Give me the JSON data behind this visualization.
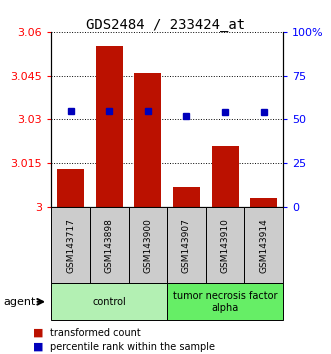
{
  "title": "GDS2484 / 233424_at",
  "samples": [
    "GSM143717",
    "GSM143898",
    "GSM143900",
    "GSM143907",
    "GSM143910",
    "GSM143914"
  ],
  "red_values": [
    3.013,
    3.055,
    3.046,
    3.007,
    3.021,
    3.003
  ],
  "blue_values": [
    55,
    55,
    55,
    52,
    54,
    54
  ],
  "ylim_left": [
    3.0,
    3.06
  ],
  "ylim_right": [
    0,
    100
  ],
  "yticks_left": [
    3.0,
    3.015,
    3.03,
    3.045,
    3.06
  ],
  "ytick_labels_left": [
    "3",
    "3.015",
    "3.03",
    "3.045",
    "3.06"
  ],
  "yticks_right": [
    0,
    25,
    50,
    75,
    100
  ],
  "ytick_labels_right": [
    "0",
    "25",
    "50",
    "75",
    "100%"
  ],
  "groups": [
    {
      "label": "control",
      "indices": [
        0,
        1,
        2
      ],
      "color": "#b3f0b3"
    },
    {
      "label": "tumor necrosis factor\nalpha",
      "indices": [
        3,
        4,
        5
      ],
      "color": "#66ee66"
    }
  ],
  "bar_color": "#bb1100",
  "dot_color": "#0000bb",
  "agent_label": "agent",
  "legend_items": [
    "transformed count",
    "percentile rank within the sample"
  ],
  "bar_width": 0.7,
  "title_fontsize": 10,
  "sample_box_color": "#cccccc"
}
